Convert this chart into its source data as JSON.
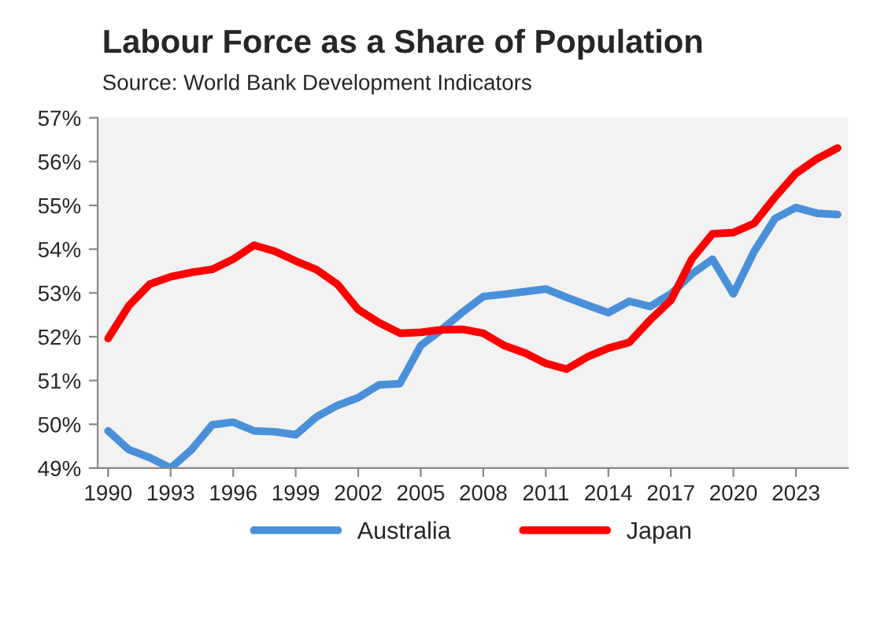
{
  "chart_data": {
    "type": "line",
    "title": "Labour Force as a Share of Population",
    "subtitle": "Source: World Bank Development Indicators",
    "categories": [
      "1990",
      null,
      null,
      "1993",
      null,
      null,
      "1996",
      null,
      null,
      "1999",
      null,
      null,
      "2002",
      null,
      null,
      "2005",
      null,
      null,
      "2008",
      null,
      null,
      "2011",
      null,
      null,
      "2014",
      null,
      null,
      "2017",
      null,
      null,
      "2020",
      null,
      null,
      "2023",
      null,
      null
    ],
    "series": [
      {
        "name": "Australia",
        "color": "#4a90d9",
        "values": [
          49.85,
          49.42,
          49.24,
          49.0,
          49.42,
          49.99,
          50.05,
          49.85,
          49.83,
          49.76,
          50.17,
          50.43,
          50.61,
          50.9,
          50.93,
          51.8,
          52.16,
          52.56,
          52.92,
          52.97,
          53.03,
          53.09,
          52.9,
          52.72,
          52.55,
          52.81,
          52.69,
          52.98,
          53.43,
          53.77,
          52.98,
          53.95,
          54.7,
          54.95,
          54.82,
          54.79
        ]
      },
      {
        "name": "Japan",
        "color": "#ff0000",
        "values": [
          51.96,
          52.71,
          53.2,
          53.37,
          53.47,
          53.54,
          53.77,
          54.09,
          53.95,
          53.73,
          53.53,
          53.2,
          52.62,
          52.32,
          52.08,
          52.1,
          52.16,
          52.17,
          52.08,
          51.8,
          51.63,
          51.39,
          51.26,
          51.54,
          51.74,
          51.87,
          52.38,
          52.83,
          53.77,
          54.35,
          54.38,
          54.59,
          55.19,
          55.73,
          56.06,
          56.31
        ]
      }
    ],
    "ylim": [
      49,
      57
    ],
    "yticks": [
      {
        "value": 49,
        "label": "49%"
      },
      {
        "value": 50,
        "label": "50%"
      },
      {
        "value": 51,
        "label": "51%"
      },
      {
        "value": 52,
        "label": "52%"
      },
      {
        "value": 53,
        "label": "53%"
      },
      {
        "value": 54,
        "label": "54%"
      },
      {
        "value": 55,
        "label": "55%"
      },
      {
        "value": 56,
        "label": "56%"
      },
      {
        "value": 57,
        "label": "57%"
      }
    ],
    "grid": false,
    "legend": "bottom",
    "marker": "none",
    "line_style": "solid"
  }
}
